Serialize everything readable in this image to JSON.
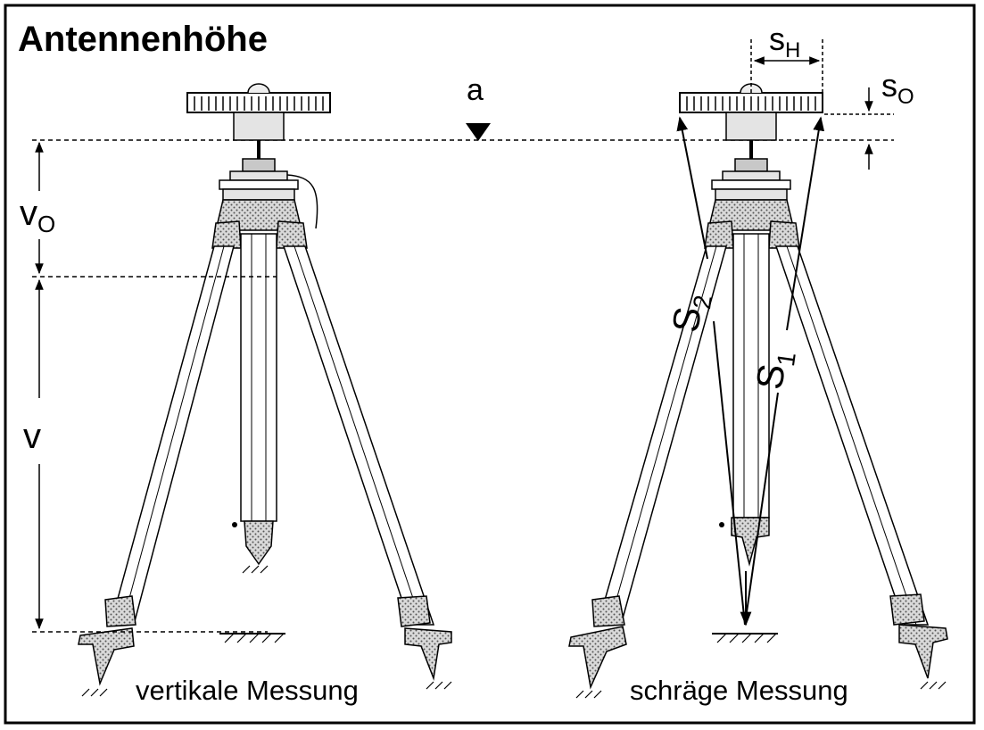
{
  "title": "Antennenhöhe",
  "labels": {
    "a": "a",
    "s_h_main": "s",
    "s_h_sub": "H",
    "s_o_main": "s",
    "s_o_sub": "O",
    "v_o_main": "v",
    "v_o_sub": "O",
    "v": "v",
    "s1_main": "S",
    "s1_sub": "1",
    "s2_main": "S",
    "s2_sub": "2"
  },
  "captions": {
    "left": "vertikale Messung",
    "right": "schräge Messung"
  },
  "colors": {
    "ink": "#000000",
    "fill_light": "#e4e4e4",
    "fill_mid": "#c8c8c8",
    "background": "#ffffff"
  }
}
